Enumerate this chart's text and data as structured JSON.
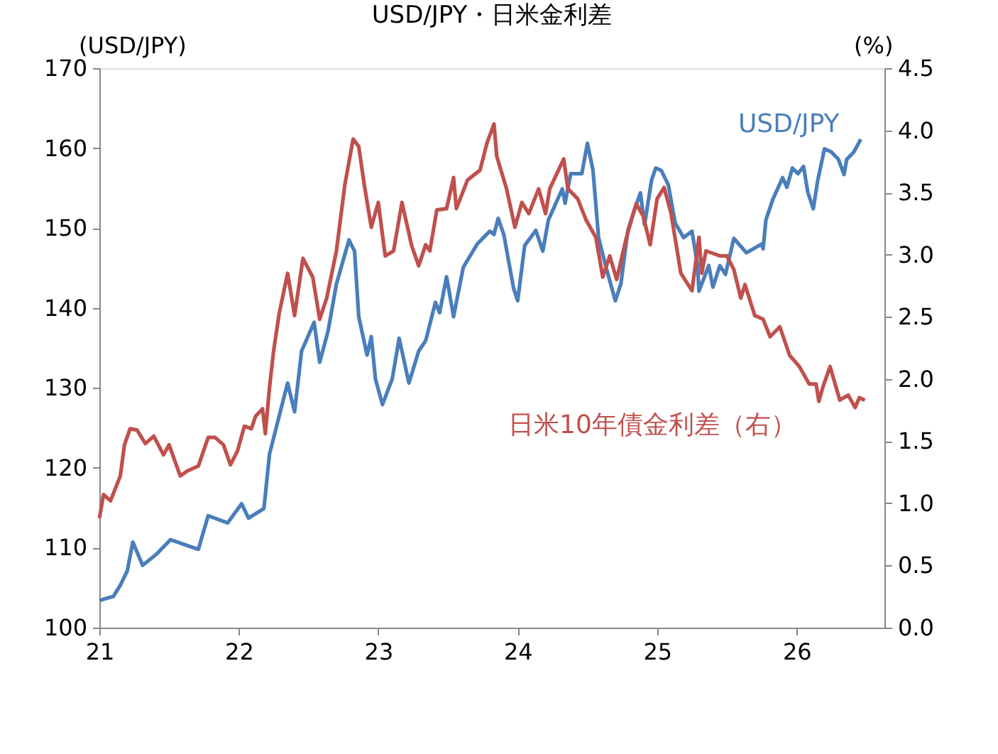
{
  "chart_data": {
    "type": "line",
    "title": "USD/JPY・日米金利差",
    "ylabel": "(USD/JPY)",
    "y2label": "(%)",
    "xlim": [
      21,
      26.63
    ],
    "xticks": [
      21,
      22,
      23,
      24,
      25,
      26
    ],
    "ylim": [
      100,
      170
    ],
    "yticks": [
      100,
      110,
      120,
      130,
      140,
      150,
      160,
      170
    ],
    "y2lim": [
      0,
      4.5
    ],
    "y2ticks": [
      {
        "value": 0,
        "label": "0.0"
      },
      0.5,
      {
        "value": 1,
        "label": "1.0"
      },
      1.5,
      {
        "value": 2,
        "label": "2.0"
      },
      2.5,
      {
        "value": 3,
        "label": "3.0"
      },
      3.5,
      {
        "value": 4,
        "label": "4.0"
      },
      4.5
    ],
    "series": [
      {
        "name": "USD/JPY",
        "color": "#4a7ebb",
        "x": [
          21.0,
          21.1,
          21.15,
          21.2,
          21.24,
          21.31,
          21.41,
          21.51,
          21.71,
          21.78,
          21.92,
          22.02,
          22.07,
          22.18,
          22.22,
          22.29,
          22.35,
          22.4,
          22.45,
          22.54,
          22.58,
          22.64,
          22.7,
          22.79,
          22.83,
          22.86,
          22.92,
          22.95,
          22.98,
          23.03,
          23.1,
          23.15,
          23.22,
          23.29,
          23.34,
          23.41,
          23.44,
          23.49,
          23.54,
          23.61,
          23.71,
          23.8,
          23.83,
          23.86,
          23.9,
          23.97,
          24.0,
          24.05,
          24.13,
          24.18,
          24.22,
          24.32,
          24.34,
          24.38,
          24.46,
          24.5,
          24.54,
          24.58,
          24.63,
          24.7,
          24.74,
          24.79,
          24.83,
          24.88,
          24.91,
          24.96,
          24.99,
          25.03,
          25.08,
          25.13,
          25.19,
          25.25,
          25.29,
          25.3,
          25.37,
          25.4,
          25.45,
          25.49,
          25.55,
          25.64,
          25.75,
          25.76,
          25.78,
          25.83,
          25.9,
          25.93,
          25.97,
          26.01,
          26.05,
          26.08,
          26.12,
          26.15,
          26.2,
          26.25,
          26.3,
          26.34,
          26.36,
          26.41,
          26.46
        ],
        "values": [
          103.4,
          103.9,
          105.3,
          107.1,
          110.7,
          107.8,
          109.2,
          111.0,
          109.8,
          114.0,
          113.1,
          115.5,
          113.7,
          114.9,
          121.7,
          126.5,
          130.6,
          127.0,
          134.6,
          138.2,
          133.2,
          137.1,
          143.0,
          148.5,
          147.1,
          138.9,
          134.1,
          136.4,
          131.1,
          127.9,
          131.1,
          136.2,
          130.6,
          134.6,
          135.9,
          140.7,
          139.4,
          143.9,
          138.9,
          145.1,
          148.0,
          149.6,
          149.2,
          151.2,
          149.2,
          142.5,
          140.9,
          147.8,
          149.7,
          147.1,
          151.0,
          154.9,
          153.1,
          156.8,
          156.8,
          160.6,
          157.2,
          148.8,
          145.3,
          140.9,
          143.0,
          149.7,
          151.9,
          154.4,
          150.4,
          156.0,
          157.5,
          157.2,
          155.4,
          150.6,
          148.8,
          149.6,
          145.3,
          142.1,
          145.3,
          142.6,
          145.3,
          144.2,
          148.7,
          146.9,
          148.0,
          147.4,
          151.0,
          153.6,
          156.3,
          155.1,
          157.5,
          156.8,
          157.7,
          154.5,
          152.4,
          155.8,
          159.9,
          159.5,
          158.6,
          156.7,
          158.6,
          159.5,
          161.1
        ]
      },
      {
        "name": "日米10年債金利差（右）",
        "color": "#c0504d",
        "axis": "y2",
        "x": [
          21.0,
          21.03,
          21.08,
          21.15,
          21.18,
          21.22,
          21.27,
          21.33,
          21.39,
          21.46,
          21.5,
          21.58,
          21.63,
          21.71,
          21.78,
          21.83,
          21.89,
          21.94,
          21.99,
          22.04,
          22.09,
          22.12,
          22.17,
          22.19,
          22.22,
          22.25,
          22.29,
          22.35,
          22.4,
          22.46,
          22.53,
          22.58,
          22.63,
          22.7,
          22.76,
          22.82,
          22.86,
          22.9,
          22.95,
          23.0,
          23.05,
          23.11,
          23.17,
          23.24,
          23.29,
          23.34,
          23.37,
          23.42,
          23.49,
          23.54,
          23.56,
          23.64,
          23.73,
          23.78,
          23.83,
          23.85,
          23.92,
          23.98,
          24.03,
          24.08,
          24.15,
          24.2,
          24.23,
          24.33,
          24.36,
          24.43,
          24.49,
          24.56,
          24.61,
          24.66,
          24.71,
          24.78,
          24.85,
          24.9,
          24.95,
          25.0,
          25.05,
          25.1,
          25.17,
          25.25,
          25.3,
          25.32,
          25.35,
          25.45,
          25.5,
          25.55,
          25.6,
          25.63,
          25.7,
          25.76,
          25.81,
          25.88,
          25.95,
          26.02,
          26.09,
          26.14,
          26.16,
          26.19,
          26.24,
          26.31,
          26.37,
          26.42,
          26.45,
          26.49
        ],
        "values": [
          0.88,
          1.07,
          1.02,
          1.22,
          1.47,
          1.6,
          1.59,
          1.48,
          1.54,
          1.39,
          1.47,
          1.22,
          1.26,
          1.3,
          1.53,
          1.53,
          1.47,
          1.31,
          1.42,
          1.62,
          1.6,
          1.7,
          1.76,
          1.56,
          1.93,
          2.23,
          2.53,
          2.85,
          2.51,
          2.97,
          2.82,
          2.48,
          2.65,
          3.03,
          3.56,
          3.93,
          3.87,
          3.56,
          3.22,
          3.42,
          2.99,
          3.03,
          3.42,
          3.07,
          2.91,
          3.08,
          3.03,
          3.36,
          3.37,
          3.62,
          3.37,
          3.6,
          3.68,
          3.9,
          4.05,
          3.79,
          3.53,
          3.22,
          3.42,
          3.33,
          3.53,
          3.33,
          3.53,
          3.77,
          3.53,
          3.45,
          3.28,
          3.14,
          2.82,
          2.99,
          2.8,
          3.14,
          3.41,
          3.31,
          3.08,
          3.45,
          3.54,
          3.33,
          2.85,
          2.71,
          3.14,
          2.85,
          3.03,
          2.99,
          2.99,
          2.88,
          2.65,
          2.76,
          2.51,
          2.48,
          2.34,
          2.42,
          2.19,
          2.1,
          1.96,
          1.96,
          1.82,
          1.94,
          2.1,
          1.83,
          1.87,
          1.77,
          1.85,
          1.83
        ]
      }
    ]
  }
}
